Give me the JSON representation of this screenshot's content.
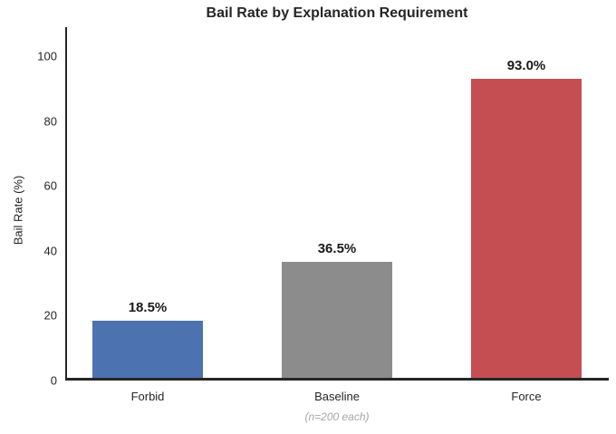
{
  "chart_data": {
    "type": "bar",
    "title": "Bail Rate by Explanation Requirement",
    "ylabel": "Bail Rate (%)",
    "xlabel": "",
    "note": "(n=200 each)",
    "categories": [
      "Forbid",
      "Baseline",
      "Force"
    ],
    "values": [
      18.5,
      36.5,
      93.0
    ],
    "value_labels": [
      "18.5%",
      "36.5%",
      "93.0%"
    ],
    "bar_colors": [
      "#4C72B0",
      "#8C8C8C",
      "#C44E52"
    ],
    "yticks": [
      0,
      20,
      40,
      60,
      80,
      100
    ],
    "ylim": [
      0,
      109
    ],
    "grid": false,
    "legend_position": "none",
    "text_color": "#262626",
    "note_color": "#a6a6a6"
  }
}
